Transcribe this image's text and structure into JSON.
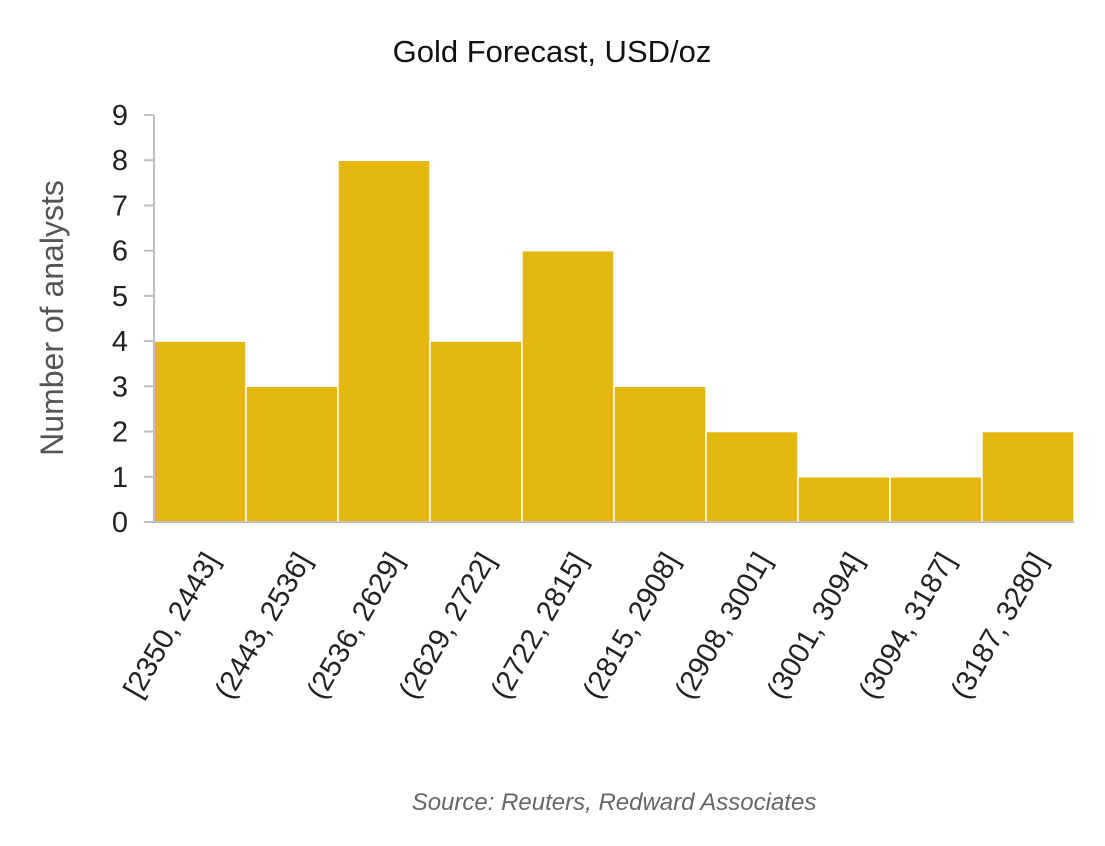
{
  "chart_data": {
    "type": "bar",
    "title": "Gold Forecast, USD/oz",
    "xlabel": "",
    "ylabel": "Number of analysts",
    "categories": [
      "[2350, 2443]",
      "(2443, 2536]",
      "(2536, 2629]",
      "(2629, 2722]",
      "(2722, 2815]",
      "(2815, 2908]",
      "(2908, 3001]",
      "(3001, 3094]",
      "(3094, 3187]",
      "(3187, 3280]"
    ],
    "values": [
      4,
      3,
      8,
      4,
      6,
      3,
      2,
      1,
      1,
      2
    ],
    "ylim": [
      0,
      9
    ],
    "yticks": [
      0,
      1,
      2,
      3,
      4,
      5,
      6,
      7,
      8,
      9
    ],
    "grid": false,
    "bar_color": "#E4B70C",
    "axis_color": "#BFBFBF",
    "source": "Source: Reuters, Redward Associates"
  }
}
